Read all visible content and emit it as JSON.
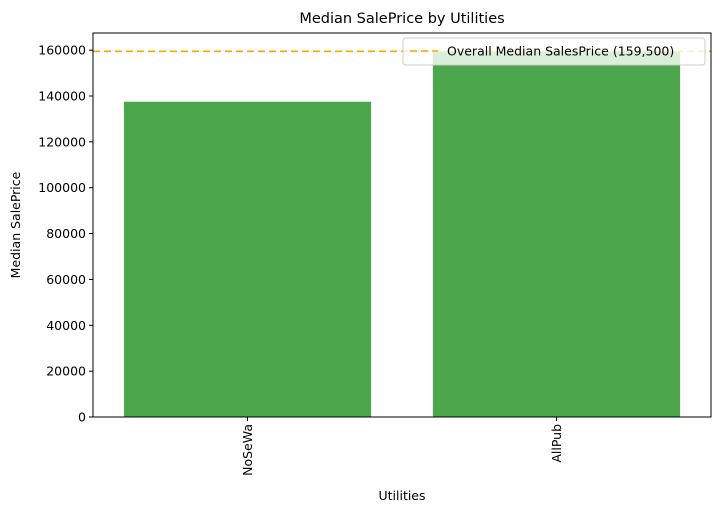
{
  "chart_data": {
    "type": "bar",
    "title": "Median SalePrice by Utilities",
    "xlabel": "Utilities",
    "ylabel": "Median SalePrice",
    "categories": [
      "NoSeWa",
      "AllPub"
    ],
    "values": [
      137500,
      159500
    ],
    "ylim": [
      0,
      167475
    ],
    "yticks": [
      0,
      20000,
      40000,
      60000,
      80000,
      100000,
      120000,
      140000,
      160000
    ],
    "bar_color": "#4ca64c",
    "grid": false,
    "reference_line": {
      "value": 159500,
      "label": "Overall Median SalesPrice (159,500)",
      "color": "#ffa500",
      "style": "dashed"
    },
    "legend": {
      "placement": "upper-right"
    }
  }
}
